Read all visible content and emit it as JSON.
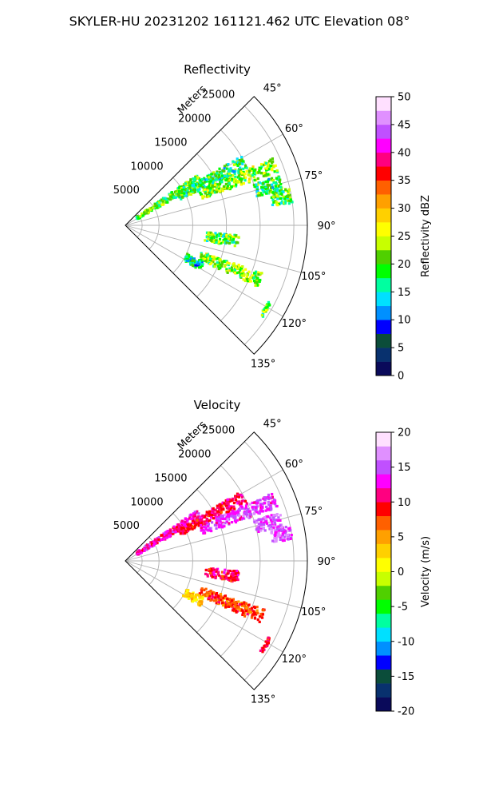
{
  "figure": {
    "title": "SKYLER-HU  20231202  161121.462 UTC Elevation 08°"
  },
  "chart_data": [
    {
      "type": "polar-sector",
      "title": "Reflectivity",
      "range_label": "Meters",
      "range_ticks": [
        5000,
        10000,
        15000,
        20000,
        25000
      ],
      "range_max_m": 27000,
      "azimuth_ticks": [
        "45°",
        "60°",
        "75°",
        "90°",
        "105°",
        "120°",
        "135°"
      ],
      "azimuth_range_deg": [
        45,
        135
      ],
      "grid": true,
      "colorbar": {
        "label": "Reflectivity dBZ",
        "min": 0,
        "max": 50,
        "ticks": [
          0,
          5,
          10,
          15,
          20,
          25,
          30,
          35,
          40,
          45,
          50
        ],
        "colormap": [
          "#0a0a5a",
          "#08316e",
          "#0b4d3a",
          "#0000ff",
          "#0090ff",
          "#00e0ff",
          "#00ffa0",
          "#00ff00",
          "#50d000",
          "#c8ff00",
          "#ffff00",
          "#ffd000",
          "#ffa000",
          "#ff6000",
          "#ff0000",
          "#ff0080",
          "#ff00ff",
          "#c050ff",
          "#e090ff",
          "#ffe0ff"
        ]
      },
      "echoes": [
        {
          "az_deg": 58,
          "range_m": [
            2000,
            13000
          ],
          "dbz": 20
        },
        {
          "az_deg": 62,
          "range_m": [
            9000,
            20000
          ],
          "dbz": 18
        },
        {
          "az_deg": 68,
          "range_m": [
            12000,
            24000
          ],
          "dbz": 22
        },
        {
          "az_deg": 75,
          "range_m": [
            20000,
            24000
          ],
          "dbz": 18
        },
        {
          "az_deg": 80,
          "range_m": [
            22000,
            25000
          ],
          "dbz": 20
        },
        {
          "az_deg": 98,
          "range_m": [
            12000,
            17000
          ],
          "dbz": 20
        },
        {
          "az_deg": 112,
          "range_m": [
            12000,
            22000
          ],
          "dbz": 22
        },
        {
          "az_deg": 118,
          "range_m": [
            10000,
            13000
          ],
          "dbz": 15
        },
        {
          "az_deg": 121,
          "range_m": [
            24000,
            24500
          ],
          "dbz": 20
        }
      ]
    },
    {
      "type": "polar-sector",
      "title": "Velocity",
      "range_label": "Meters",
      "range_ticks": [
        5000,
        10000,
        15000,
        20000,
        25000
      ],
      "range_max_m": 27000,
      "azimuth_ticks": [
        "45°",
        "60°",
        "75°",
        "90°",
        "105°",
        "120°",
        "135°"
      ],
      "azimuth_range_deg": [
        45,
        135
      ],
      "grid": true,
      "colorbar": {
        "label": "Velocity (m/s)",
        "min": -20,
        "max": 20,
        "ticks": [
          -20,
          -15,
          -10,
          -5,
          0,
          5,
          10,
          15,
          20
        ],
        "colormap": [
          "#0a0a5a",
          "#08316e",
          "#0b4d3a",
          "#0000ff",
          "#0090ff",
          "#00e0ff",
          "#00ffa0",
          "#00ff00",
          "#50d000",
          "#c8ff00",
          "#ffff00",
          "#ffd000",
          "#ffa000",
          "#ff6000",
          "#ff0000",
          "#ff0080",
          "#ff00ff",
          "#c050ff",
          "#e090ff",
          "#ffe0ff"
        ]
      },
      "echoes": [
        {
          "az_deg": 58,
          "range_m": [
            2000,
            13000
          ],
          "value": 12
        },
        {
          "az_deg": 62,
          "range_m": [
            9000,
            20000
          ],
          "value": 10
        },
        {
          "az_deg": 68,
          "range_m": [
            12000,
            24000
          ],
          "value": 14
        },
        {
          "az_deg": 75,
          "range_m": [
            20000,
            24000
          ],
          "value": 15
        },
        {
          "az_deg": 80,
          "range_m": [
            22000,
            25000
          ],
          "value": 15
        },
        {
          "az_deg": 98,
          "range_m": [
            12000,
            17000
          ],
          "value": 10
        },
        {
          "az_deg": 112,
          "range_m": [
            12000,
            22000
          ],
          "value": 8
        },
        {
          "az_deg": 118,
          "range_m": [
            10000,
            13000
          ],
          "value": 3
        },
        {
          "az_deg": 121,
          "range_m": [
            24000,
            24500
          ],
          "value": 10
        }
      ]
    }
  ]
}
